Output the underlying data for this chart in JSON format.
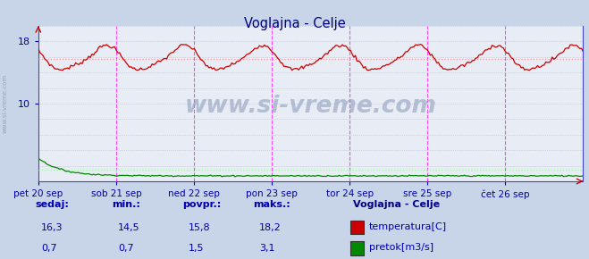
{
  "title": "Voglajna - Celje",
  "title_color": "#000080",
  "bg_color": "#c8d4e8",
  "plot_bg_color": "#e8ecf4",
  "temp_color": "#cc0000",
  "flow_color": "#008800",
  "avg_temp_color": "#ff9999",
  "avg_flow_color": "#99ff99",
  "axis_color": "#4444cc",
  "tick_color": "#0000aa",
  "text_color": "#0000aa",
  "legend_title_color": "#000080",
  "xlabels": [
    "pet 20 sep",
    "sob 21 sep",
    "ned 22 sep",
    "pon 23 sep",
    "tor 24 sep",
    "sre 25 sep",
    "čet 26 sep"
  ],
  "watermark": "www.si-vreme.com",
  "watermark_color": "#8898b8",
  "legend_title": "Voglajna - Celje",
  "legend_items": [
    "temperatura[C]",
    "pretok[m3/s]"
  ],
  "legend_colors": [
    "#cc0000",
    "#008800"
  ],
  "stats_labels": [
    "sedaj:",
    "min.:",
    "povpr.:",
    "maks.:"
  ],
  "stats_temp": [
    "16,3",
    "14,5",
    "15,8",
    "18,2"
  ],
  "stats_flow": [
    "0,7",
    "0,7",
    "1,5",
    "3,1"
  ],
  "avg_temp": 15.8,
  "avg_flow": 1.5,
  "n_points": 336,
  "ytick_labels": [
    "18",
    "10"
  ],
  "ytick_vals": [
    18,
    10
  ]
}
